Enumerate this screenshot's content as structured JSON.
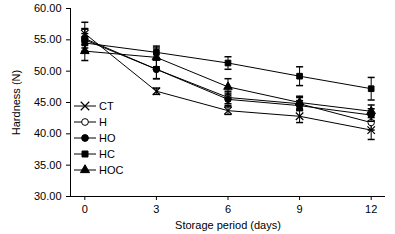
{
  "chart_data": {
    "type": "line",
    "x_label": "Storage period (days)",
    "y_label": "Hardness (N)",
    "x": [
      0,
      3,
      6,
      9,
      12
    ],
    "xlim": [
      -0.6,
      12.6
    ],
    "xticks": [
      0,
      3,
      6,
      9,
      12
    ],
    "ylim": [
      30,
      60
    ],
    "yticks": [
      {
        "value": 30,
        "label": "30.00"
      },
      {
        "value": 35,
        "label": "35.00"
      },
      {
        "value": 40,
        "label": "40.00"
      },
      {
        "value": 45,
        "label": "45.00"
      },
      {
        "value": 50,
        "label": "50.00"
      },
      {
        "value": 55,
        "label": "55.00"
      },
      {
        "value": 60,
        "label": "60.00"
      }
    ],
    "grid": false,
    "legend": "lower left",
    "series": [
      {
        "name": "CT",
        "color": "#000000",
        "marker": "x",
        "values": [
          56.0,
          46.8,
          43.7,
          42.8,
          40.6
        ],
        "errors": [
          1.8,
          0.5,
          0.6,
          1.0,
          1.5
        ]
      },
      {
        "name": "H",
        "color": "#000000",
        "marker": "circle-open",
        "values": [
          55.0,
          50.3,
          45.8,
          44.8,
          41.8
        ],
        "errors": [
          1.8,
          1.5,
          1.0,
          1.0,
          1.2
        ]
      },
      {
        "name": "HO",
        "color": "#000000",
        "marker": "circle",
        "values": [
          55.2,
          50.3,
          45.5,
          44.5,
          43.0
        ],
        "errors": [
          1.5,
          1.5,
          1.0,
          0.8,
          1.0
        ]
      },
      {
        "name": "HC",
        "color": "#000000",
        "marker": "square",
        "values": [
          54.5,
          53.0,
          51.3,
          49.2,
          47.2
        ],
        "errors": [
          1.5,
          1.0,
          1.0,
          1.5,
          1.8
        ]
      },
      {
        "name": "HOC",
        "color": "#000000",
        "marker": "triangle",
        "values": [
          53.2,
          52.2,
          47.5,
          45.0,
          43.6
        ],
        "errors": [
          1.5,
          1.5,
          1.3,
          1.0,
          1.0
        ]
      }
    ]
  }
}
